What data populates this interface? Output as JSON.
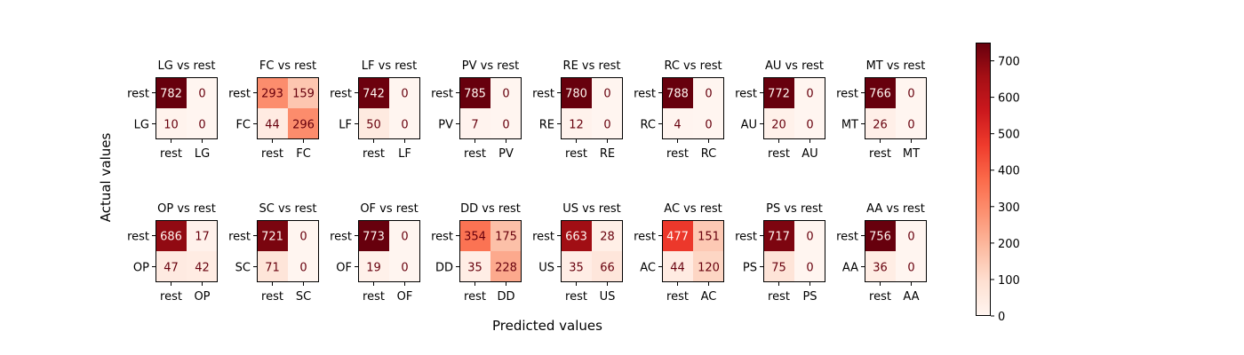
{
  "chart_data": {
    "type": "heatmap",
    "xlabel": "Predicted values",
    "ylabel": "Actual values",
    "colorbar": {
      "min": 0,
      "max": 750,
      "ticks": [
        0,
        100,
        200,
        300,
        400,
        500,
        600,
        700
      ],
      "colormap": "Reds",
      "colors": [
        "#fff5f0",
        "#fee0d2",
        "#fcbba1",
        "#fc9272",
        "#fb6a4a",
        "#ef3b2c",
        "#cb181d",
        "#a50f15",
        "#67000d"
      ]
    },
    "text_colors": {
      "on_light": "#67000d",
      "on_dark": "#fff5f0"
    },
    "panels": [
      {
        "title": "LG vs rest",
        "row_labels": [
          "rest",
          "LG"
        ],
        "col_labels": [
          "rest",
          "LG"
        ],
        "matrix": [
          [
            782,
            0
          ],
          [
            10,
            0
          ]
        ]
      },
      {
        "title": "FC vs rest",
        "row_labels": [
          "rest",
          "FC"
        ],
        "col_labels": [
          "rest",
          "FC"
        ],
        "matrix": [
          [
            293,
            159
          ],
          [
            44,
            296
          ]
        ]
      },
      {
        "title": "LF vs rest",
        "row_labels": [
          "rest",
          "LF"
        ],
        "col_labels": [
          "rest",
          "LF"
        ],
        "matrix": [
          [
            742,
            0
          ],
          [
            50,
            0
          ]
        ]
      },
      {
        "title": "PV vs rest",
        "row_labels": [
          "rest",
          "PV"
        ],
        "col_labels": [
          "rest",
          "PV"
        ],
        "matrix": [
          [
            785,
            0
          ],
          [
            7,
            0
          ]
        ]
      },
      {
        "title": "RE vs rest",
        "row_labels": [
          "rest",
          "RE"
        ],
        "col_labels": [
          "rest",
          "RE"
        ],
        "matrix": [
          [
            780,
            0
          ],
          [
            12,
            0
          ]
        ]
      },
      {
        "title": "RC vs rest",
        "row_labels": [
          "rest",
          "RC"
        ],
        "col_labels": [
          "rest",
          "RC"
        ],
        "matrix": [
          [
            788,
            0
          ],
          [
            4,
            0
          ]
        ]
      },
      {
        "title": "AU vs rest",
        "row_labels": [
          "rest",
          "AU"
        ],
        "col_labels": [
          "rest",
          "AU"
        ],
        "matrix": [
          [
            772,
            0
          ],
          [
            20,
            0
          ]
        ]
      },
      {
        "title": "MT vs rest",
        "row_labels": [
          "rest",
          "MT"
        ],
        "col_labels": [
          "rest",
          "MT"
        ],
        "matrix": [
          [
            766,
            0
          ],
          [
            26,
            0
          ]
        ]
      },
      {
        "title": "OP vs rest",
        "row_labels": [
          "rest",
          "OP"
        ],
        "col_labels": [
          "rest",
          "OP"
        ],
        "matrix": [
          [
            686,
            17
          ],
          [
            47,
            42
          ]
        ]
      },
      {
        "title": "SC vs rest",
        "row_labels": [
          "rest",
          "SC"
        ],
        "col_labels": [
          "rest",
          "SC"
        ],
        "matrix": [
          [
            721,
            0
          ],
          [
            71,
            0
          ]
        ]
      },
      {
        "title": "OF vs rest",
        "row_labels": [
          "rest",
          "OF"
        ],
        "col_labels": [
          "rest",
          "OF"
        ],
        "matrix": [
          [
            773,
            0
          ],
          [
            19,
            0
          ]
        ]
      },
      {
        "title": "DD vs rest",
        "row_labels": [
          "rest",
          "DD"
        ],
        "col_labels": [
          "rest",
          "DD"
        ],
        "matrix": [
          [
            354,
            175
          ],
          [
            35,
            228
          ]
        ]
      },
      {
        "title": "US vs rest",
        "row_labels": [
          "rest",
          "US"
        ],
        "col_labels": [
          "rest",
          "US"
        ],
        "matrix": [
          [
            663,
            28
          ],
          [
            35,
            66
          ]
        ]
      },
      {
        "title": "AC vs rest",
        "row_labels": [
          "rest",
          "AC"
        ],
        "col_labels": [
          "rest",
          "AC"
        ],
        "matrix": [
          [
            477,
            151
          ],
          [
            44,
            120
          ]
        ]
      },
      {
        "title": "PS vs rest",
        "row_labels": [
          "rest",
          "PS"
        ],
        "col_labels": [
          "rest",
          "PS"
        ],
        "matrix": [
          [
            717,
            0
          ],
          [
            75,
            0
          ]
        ]
      },
      {
        "title": "AA vs rest",
        "row_labels": [
          "rest",
          "AA"
        ],
        "col_labels": [
          "rest",
          "AA"
        ],
        "matrix": [
          [
            756,
            0
          ],
          [
            36,
            0
          ]
        ]
      }
    ]
  }
}
